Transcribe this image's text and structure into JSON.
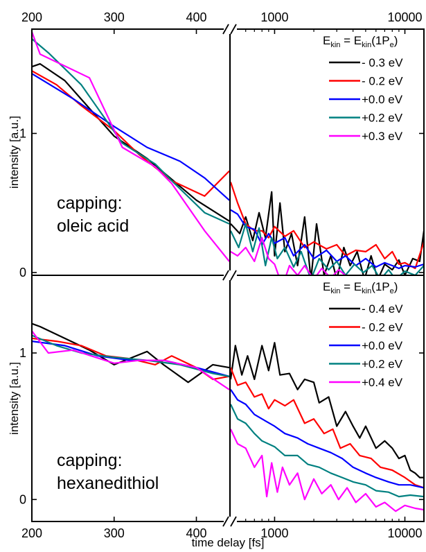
{
  "chart_data": [
    {
      "type": "line",
      "panel": "top",
      "annotation_lines": [
        "capping:",
        "oleic acid"
      ],
      "ylabel": "intensity [a.u.]",
      "xlabel": "",
      "y_ticks": [
        "0",
        "1"
      ],
      "ylim": [
        -0.02,
        1.75
      ],
      "x_ticks_left": [
        "200",
        "300",
        "400"
      ],
      "x_ticks_right": [
        "1000",
        "10000"
      ],
      "xlim_left": [
        200,
        440
      ],
      "xlim_right_log": [
        460,
        14000
      ],
      "legend": {
        "title": "E",
        "title_sub": "kin",
        "title_rest": " = E",
        "title_sub2": "kin",
        "title_tail": "(1P",
        "title_sub3": "e",
        "title_close": ")",
        "position": "top-right"
      },
      "series": [
        {
          "name": "- 0.3 eV",
          "color": "#000000",
          "left": {
            "x": [
              200,
              210,
              240,
              270,
              300,
              340,
              370,
              400,
              440
            ],
            "y": [
              1.48,
              1.5,
              1.38,
              1.18,
              0.98,
              0.82,
              0.67,
              0.52,
              0.37
            ]
          },
          "right": {
            "x": [
              460,
              540,
              600,
              680,
              760,
              850,
              950,
              1000,
              1100,
              1200,
              1350,
              1500,
              1700,
              1900,
              2100,
              2400,
              2700,
              3000,
              3400,
              3800,
              4300,
              4900,
              5500,
              6200,
              7000,
              8000,
              9000,
              10000,
              11500,
              13000,
              14000
            ],
            "y": [
              0.35,
              0.28,
              0.4,
              0.23,
              0.43,
              0.25,
              0.58,
              0.12,
              0.5,
              0.15,
              0.28,
              0.05,
              0.4,
              -0.05,
              0.35,
              -0.02,
              0.12,
              -0.05,
              0.18,
              0.05,
              0.15,
              -0.05,
              0.12,
              -0.05,
              0.06,
              0.02,
              0.09,
              -0.02,
              0.1,
              0.08,
              0.3
            ]
          }
        },
        {
          "name": "- 0.2 eV",
          "color": "#ff0000",
          "left": {
            "x": [
              200,
              230,
              260,
              300,
              330,
              370,
              410,
              440
            ],
            "y": [
              1.45,
              1.35,
              1.2,
              1.02,
              0.85,
              0.66,
              0.55,
              0.73
            ]
          },
          "right": {
            "x": [
              460,
              520,
              600,
              700,
              800,
              900,
              1000,
              1200,
              1400,
              1700,
              2000,
              2500,
              3000,
              3500,
              4200,
              5000,
              6000,
              7000,
              8000,
              9000,
              10000,
              12000,
              14000
            ],
            "y": [
              0.65,
              0.5,
              0.35,
              0.3,
              0.3,
              0.25,
              0.33,
              0.26,
              0.3,
              0.18,
              0.22,
              0.17,
              0.2,
              0.12,
              0.16,
              0.15,
              0.2,
              0.1,
              0.15,
              0.06,
              0.07,
              0.03,
              0.22
            ]
          }
        },
        {
          "name": "+0.0 eV",
          "color": "#0000ff",
          "left": {
            "x": [
              200,
              250,
              300,
              340,
              380,
              410,
              440
            ],
            "y": [
              1.43,
              1.25,
              1.05,
              0.9,
              0.8,
              0.68,
              0.52
            ]
          },
          "right": {
            "x": [
              460,
              520,
              600,
              700,
              800,
              900,
              1000,
              1200,
              1400,
              1700,
              2000,
              2500,
              3000,
              3500,
              4200,
              5000,
              6000,
              7000,
              8000,
              9000,
              10000,
              12000,
              14000
            ],
            "y": [
              0.45,
              0.42,
              0.33,
              0.31,
              0.2,
              0.28,
              0.21,
              0.25,
              0.12,
              0.2,
              0.1,
              0.16,
              0.08,
              0.12,
              0.05,
              0.1,
              0.04,
              0.07,
              0.05,
              0.03,
              0.05,
              0.04,
              0.06
            ]
          }
        },
        {
          "name": "+0.2 eV",
          "color": "#008080",
          "left": {
            "x": [
              200,
              220,
              260,
              310,
              350,
              370,
              410,
              440
            ],
            "y": [
              1.68,
              1.58,
              1.35,
              0.93,
              0.78,
              0.66,
              0.43,
              0.35
            ]
          },
          "right": {
            "x": [
              460,
              530,
              600,
              680,
              760,
              850,
              950,
              1050,
              1200,
              1400,
              1600,
              1900,
              2200,
              2600,
              3000,
              3500,
              4100,
              4800,
              5600,
              6500,
              7500,
              8500,
              10000,
              12000,
              14000
            ],
            "y": [
              0.3,
              0.18,
              0.35,
              0.15,
              0.32,
              0.05,
              0.25,
              0.1,
              0.18,
              0.04,
              0.15,
              -0.05,
              0.1,
              0.02,
              0.08,
              -0.02,
              0.06,
              0.0,
              0.05,
              -0.05,
              0.02,
              -0.05,
              0.01,
              -0.02,
              0.05
            ]
          }
        },
        {
          "name": "+0.3 eV",
          "color": "#ff00ff",
          "left": {
            "x": [
              200,
              210,
              270,
              310,
              350,
              370,
              410,
              440
            ],
            "y": [
              1.73,
              1.57,
              1.4,
              0.9,
              0.76,
              0.64,
              0.3,
              0.08
            ]
          },
          "right": {
            "x": [
              460,
              520,
              600,
              700,
              800,
              900,
              1000,
              1150,
              1300,
              1500,
              1700,
              2000,
              2300,
              2700,
              3100,
              3600,
              4200,
              5000,
              6000,
              7000
            ],
            "y": [
              0.15,
              0.12,
              0.18,
              0.08,
              0.25,
              0.1,
              0.06,
              -0.1,
              0.05,
              -0.02,
              0.05,
              -0.05,
              0.03,
              -0.04,
              0.02,
              -0.03,
              -0.06,
              -0.06,
              -0.06,
              -0.06
            ]
          }
        }
      ]
    },
    {
      "type": "line",
      "panel": "bottom",
      "annotation_lines": [
        "capping:",
        "hexanedithiol"
      ],
      "ylabel": "intensity [a.u.]",
      "xlabel": "time delay [fs]",
      "y_ticks": [
        "0",
        "1"
      ],
      "ylim": [
        -0.15,
        1.53
      ],
      "x_ticks_left": [
        "200",
        "300",
        "400"
      ],
      "x_ticks_right": [
        "1000",
        "10000"
      ],
      "xlim_left": [
        200,
        440
      ],
      "xlim_right_log": [
        460,
        14000
      ],
      "legend": {
        "title": "E",
        "title_sub": "kin",
        "title_rest": " = E",
        "title_sub2": "kin",
        "title_tail": "(1P",
        "title_sub3": "e",
        "title_close": ")",
        "position": "top-right"
      },
      "series": [
        {
          "name": "- 0.4 eV",
          "color": "#000000",
          "left": {
            "x": [
              200,
              210,
              240,
              270,
              300,
              340,
              360,
              390,
              420,
              440
            ],
            "y": [
              1.2,
              1.18,
              1.1,
              1.02,
              0.92,
              1.01,
              0.92,
              0.8,
              0.92,
              0.9
            ]
          },
          "right": {
            "x": [
              460,
              500,
              560,
              620,
              700,
              800,
              900,
              1000,
              1100,
              1300,
              1500,
              1700,
              2000,
              2200,
              2600,
              3000,
              3500,
              4000,
              4500,
              5000,
              6000,
              7000,
              8000,
              9000,
              10000,
              11000,
              12000,
              13000,
              14000
            ],
            "y": [
              0.82,
              1.05,
              0.85,
              0.98,
              0.82,
              1.05,
              0.88,
              1.07,
              0.85,
              0.86,
              0.75,
              0.82,
              0.8,
              0.66,
              0.7,
              0.5,
              0.6,
              0.5,
              0.42,
              0.5,
              0.35,
              0.4,
              0.35,
              0.28,
              0.3,
              0.2,
              0.18,
              0.15,
              0.15
            ]
          }
        },
        {
          "name": "- 0.2 eV",
          "color": "#ff0000",
          "left": {
            "x": [
              200,
              230,
              260,
              290,
              320,
              350,
              370,
              400,
              420,
              440
            ],
            "y": [
              1.1,
              1.08,
              1.05,
              0.98,
              0.96,
              0.92,
              0.98,
              0.9,
              0.82,
              0.84
            ]
          },
          "right": {
            "x": [
              460,
              520,
              600,
              700,
              800,
              900,
              1000,
              1200,
              1400,
              1700,
              2000,
              2400,
              2800,
              3200,
              3800,
              4500,
              5500,
              6500,
              8000,
              10000,
              12000,
              14000
            ],
            "y": [
              0.9,
              0.78,
              0.8,
              0.7,
              0.72,
              0.62,
              0.68,
              0.64,
              0.68,
              0.52,
              0.55,
              0.45,
              0.48,
              0.35,
              0.38,
              0.3,
              0.28,
              0.22,
              0.2,
              0.15,
              0.1,
              0.08
            ]
          }
        },
        {
          "name": "+0.0 eV",
          "color": "#0000ff",
          "left": {
            "x": [
              200,
              240,
              280,
              320,
              360,
              400,
              440
            ],
            "y": [
              1.08,
              1.05,
              0.98,
              0.95,
              0.95,
              0.9,
              0.84
            ]
          },
          "right": {
            "x": [
              460,
              520,
              600,
              700,
              800,
              1000,
              1200,
              1500,
              1800,
              2200,
              2700,
              3300,
              4000,
              5000,
              6000,
              7500,
              9000,
              11000,
              14000
            ],
            "y": [
              0.75,
              0.68,
              0.65,
              0.58,
              0.55,
              0.5,
              0.45,
              0.42,
              0.38,
              0.35,
              0.32,
              0.28,
              0.22,
              0.18,
              0.15,
              0.12,
              0.1,
              0.1,
              0.08
            ]
          }
        },
        {
          "name": "+0.2 eV",
          "color": "#008080",
          "left": {
            "x": [
              200,
              230,
              260,
              300,
              340,
              380,
              420,
              440
            ],
            "y": [
              1.12,
              1.05,
              1.0,
              0.97,
              0.95,
              0.92,
              0.86,
              0.84
            ]
          },
          "right": {
            "x": [
              460,
              520,
              600,
              700,
              800,
              1000,
              1200,
              1500,
              1800,
              2200,
              2700,
              3300,
              4000,
              5000,
              6000,
              7500,
              9000,
              11000,
              14000
            ],
            "y": [
              0.65,
              0.55,
              0.52,
              0.45,
              0.4,
              0.36,
              0.3,
              0.3,
              0.24,
              0.22,
              0.18,
              0.15,
              0.12,
              0.1,
              0.06,
              0.05,
              0.02,
              0.03,
              0.02
            ]
          }
        },
        {
          "name": "+0.4 eV",
          "color": "#ff00ff",
          "left": {
            "x": [
              200,
              220,
              250,
              300,
              330,
              360,
              400,
              440
            ],
            "y": [
              1.15,
              1.0,
              1.02,
              0.93,
              0.95,
              0.95,
              0.9,
              0.75
            ]
          },
          "right": {
            "x": [
              460,
              520,
              600,
              700,
              800,
              870,
              950,
              1050,
              1150,
              1300,
              1500,
              1700,
              2000,
              2300,
              2700,
              3100,
              3600,
              4200,
              5000,
              6000,
              7000,
              8500,
              10000,
              12000,
              14000
            ],
            "y": [
              0.48,
              0.38,
              0.35,
              0.22,
              0.3,
              0.02,
              0.25,
              0.05,
              0.22,
              0.1,
              0.18,
              0.0,
              0.14,
              0.04,
              0.1,
              0.0,
              0.08,
              -0.02,
              0.04,
              -0.05,
              -0.02,
              -0.08,
              -0.04,
              -0.06,
              -0.07
            ]
          }
        }
      ]
    }
  ]
}
